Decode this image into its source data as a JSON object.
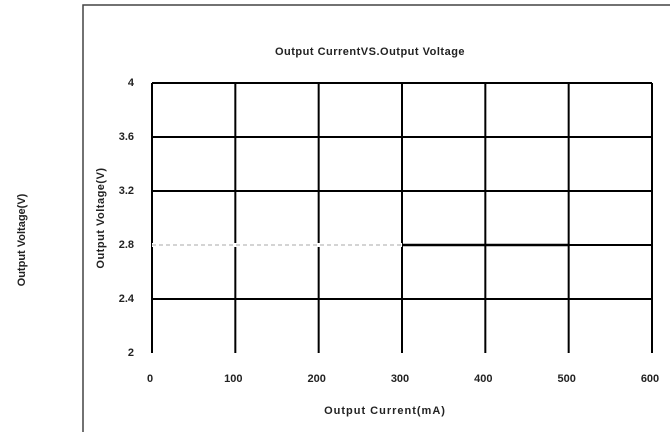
{
  "chart_data": {
    "type": "line",
    "title": "Output CurrentVS.Output Voltage",
    "xlabel": "Output Current(mA)",
    "ylabel": "Output Voltage(V)",
    "outer_ylabel": "Output Voltage(V)",
    "xlim": [
      0,
      600
    ],
    "xticks": [
      0,
      100,
      200,
      300,
      400,
      500,
      600
    ],
    "ylim": [
      2,
      4
    ],
    "yticks": [
      {
        "value": 2,
        "label": "2"
      },
      {
        "value": 2.4,
        "label": "2.4"
      },
      {
        "value": 2.8,
        "label": "2.8"
      },
      {
        "value": 3.2,
        "label": "3.2"
      },
      {
        "value": 3.6,
        "label": "3.6"
      },
      {
        "value": 4,
        "label": "4"
      }
    ],
    "grid": true,
    "series": [
      {
        "color": "#aaaaaa",
        "dashed": true,
        "x": [
          0,
          300
        ],
        "values": [
          2.8,
          2.8
        ]
      },
      {
        "color": "#000000",
        "dashed": false,
        "x": [
          300,
          500
        ],
        "values": [
          2.8,
          2.8
        ]
      }
    ]
  }
}
